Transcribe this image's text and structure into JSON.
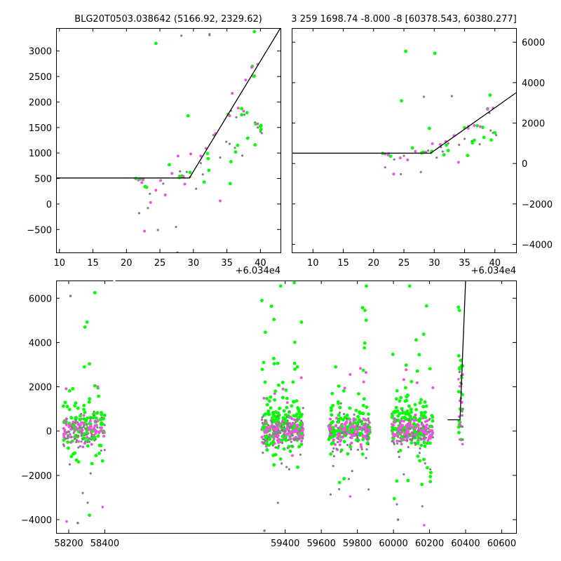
{
  "chart_data": [
    {
      "id": "top-left",
      "type": "scatter",
      "title": "BLG20T0503.038642 (5166.92, 2329.62)",
      "x_offset_label": "+6.034e4",
      "xlim": [
        9.5,
        43.0
      ],
      "ylim": [
        -950,
        3450
      ],
      "xticks": [
        10,
        15,
        20,
        25,
        30,
        35,
        40
      ],
      "yticks": [
        -500,
        0,
        500,
        1000,
        1500,
        2000,
        2500,
        3000
      ],
      "y_axis_side": "left",
      "series": [
        {
          "color": "#808080",
          "marker_size": 1.6,
          "points": [
            [
              21.9,
              -180
            ],
            [
              22.5,
              470
            ],
            [
              23.2,
              -80
            ],
            [
              23.5,
              200
            ],
            [
              24.7,
              -510
            ],
            [
              25.5,
              400
            ],
            [
              25.8,
              170
            ],
            [
              27.4,
              -450
            ],
            [
              27.6,
              -950
            ],
            [
              27.9,
              550
            ],
            [
              28.0,
              640
            ],
            [
              28.2,
              3300
            ],
            [
              28.5,
              520
            ],
            [
              29.0,
              630
            ],
            [
              29.5,
              530
            ],
            [
              30.4,
              300
            ],
            [
              31.1,
              800
            ],
            [
              31.4,
              580
            ],
            [
              32.4,
              3330
            ],
            [
              32.4,
              3310
            ],
            [
              33.0,
              1350
            ],
            [
              34.0,
              910
            ],
            [
              34.9,
              1220
            ],
            [
              35.4,
              1180
            ],
            [
              35.6,
              1830
            ],
            [
              36.2,
              1100
            ],
            [
              36.4,
              1700
            ],
            [
              37.3,
              950
            ],
            [
              37.6,
              1750
            ],
            [
              38.2,
              1300
            ],
            [
              38.9,
              2500
            ],
            [
              39.2,
              1600
            ],
            [
              39.6,
              1500
            ],
            [
              40.0,
              1420
            ],
            [
              40.2,
              1390
            ]
          ]
        },
        {
          "color": "#00ff00",
          "marker_size": 2.4,
          "points": [
            [
              21.4,
              500
            ],
            [
              22.1,
              490
            ],
            [
              22.8,
              340
            ],
            [
              22.8,
              340
            ],
            [
              23.0,
              330
            ],
            [
              24.4,
              3150
            ],
            [
              26.4,
              770
            ],
            [
              27.9,
              520
            ],
            [
              28.3,
              550
            ],
            [
              29.2,
              1730
            ],
            [
              29.5,
              620
            ],
            [
              31.6,
              430
            ],
            [
              32.1,
              990
            ],
            [
              32.2,
              890
            ],
            [
              32.3,
              660
            ],
            [
              35.2,
              1760
            ],
            [
              35.5,
              400
            ],
            [
              35.6,
              830
            ],
            [
              36.3,
              1020
            ],
            [
              36.6,
              1150
            ],
            [
              37.2,
              1870
            ],
            [
              37.2,
              1750
            ],
            [
              38.0,
              1790
            ],
            [
              38.1,
              1290
            ],
            [
              38.8,
              2700
            ],
            [
              39.1,
              3380
            ],
            [
              39.1,
              2510
            ],
            [
              39.2,
              1160
            ],
            [
              39.3,
              1570
            ],
            [
              40.0,
              1520
            ],
            [
              40.1,
              1460
            ],
            [
              40.1,
              1540
            ]
          ]
        },
        {
          "color": "#ee55dd",
          "marker_size": 2.0,
          "points": [
            [
              21.8,
              470
            ],
            [
              22.3,
              420
            ],
            [
              22.5,
              490
            ],
            [
              22.7,
              -530
            ],
            [
              23.6,
              30
            ],
            [
              24.4,
              270
            ],
            [
              25.1,
              460
            ],
            [
              25.8,
              180
            ],
            [
              26.8,
              600
            ],
            [
              27.7,
              940
            ],
            [
              28.5,
              540
            ],
            [
              28.7,
              390
            ],
            [
              29.6,
              980
            ],
            [
              31.1,
              940
            ],
            [
              31.9,
              1090
            ],
            [
              33.3,
              1380
            ],
            [
              34.0,
              60
            ],
            [
              35.4,
              1730
            ],
            [
              35.8,
              2170
            ],
            [
              36.7,
              1880
            ],
            [
              37.5,
              1820
            ],
            [
              37.8,
              2430
            ],
            [
              38.7,
              2680
            ],
            [
              39.6,
              2740
            ],
            [
              39.6,
              1570
            ]
          ]
        }
      ],
      "model_line": [
        [
          9.5,
          510
        ],
        [
          29.4,
          510
        ],
        [
          43.0,
          3450
        ]
      ]
    },
    {
      "id": "top-right",
      "type": "scatter",
      "title": "3 259 1698.74 -8.000 -8 [60378.543, 60380.277]",
      "x_offset_label": "+6.034e4",
      "xlim": [
        6.5,
        43.5
      ],
      "ylim": [
        -4400,
        6700
      ],
      "xticks": [
        10,
        15,
        20,
        25,
        30,
        35,
        40
      ],
      "yticks": [
        -4000,
        -2000,
        0,
        2000,
        4000,
        6000
      ],
      "y_axis_side": "right",
      "series": [
        {
          "color": "#808080",
          "marker_size": 1.6,
          "points": [
            [
              21.9,
              -190
            ],
            [
              22.5,
              500
            ],
            [
              23.4,
              200
            ],
            [
              24.5,
              -530
            ],
            [
              25.0,
              380
            ],
            [
              27.8,
              -420
            ],
            [
              28.3,
              3300
            ],
            [
              29.0,
              640
            ],
            [
              29.5,
              530
            ],
            [
              30.4,
              290
            ],
            [
              31.1,
              810
            ],
            [
              31.4,
              590
            ],
            [
              32.3,
              990
            ],
            [
              32.9,
              3330
            ],
            [
              33.2,
              1380
            ],
            [
              34.1,
              920
            ],
            [
              35.0,
              1220
            ],
            [
              35.6,
              1850
            ],
            [
              36.2,
              1100
            ],
            [
              37.5,
              950
            ],
            [
              38.0,
              1760
            ],
            [
              39.1,
              2500
            ],
            [
              39.3,
              1630
            ],
            [
              39.7,
              1520
            ],
            [
              40.2,
              1400
            ]
          ]
        },
        {
          "color": "#00ff00",
          "marker_size": 2.4,
          "points": [
            [
              21.5,
              500
            ],
            [
              22.8,
              360
            ],
            [
              24.6,
              3100
            ],
            [
              25.3,
              5550
            ],
            [
              26.4,
              770
            ],
            [
              27.9,
              520
            ],
            [
              28.2,
              560
            ],
            [
              29.2,
              1740
            ],
            [
              29.6,
              600
            ],
            [
              30.1,
              5450
            ],
            [
              31.6,
              430
            ],
            [
              32.0,
              910
            ],
            [
              32.3,
              640
            ],
            [
              35.0,
              1770
            ],
            [
              35.5,
              400
            ],
            [
              36.3,
              1020
            ],
            [
              36.6,
              1150
            ],
            [
              37.1,
              1870
            ],
            [
              38.0,
              1790
            ],
            [
              38.2,
              1290
            ],
            [
              38.8,
              2700
            ],
            [
              39.2,
              3380
            ],
            [
              39.4,
              1160
            ],
            [
              40.0,
              1520
            ]
          ]
        },
        {
          "color": "#ee55dd",
          "marker_size": 2.0,
          "points": [
            [
              21.9,
              470
            ],
            [
              22.4,
              420
            ],
            [
              23.3,
              -520
            ],
            [
              24.4,
              280
            ],
            [
              25.6,
              180
            ],
            [
              26.9,
              600
            ],
            [
              28.6,
              560
            ],
            [
              29.7,
              980
            ],
            [
              31.0,
              940
            ],
            [
              31.9,
              1090
            ],
            [
              33.3,
              1380
            ],
            [
              34.0,
              60
            ],
            [
              35.6,
              1740
            ],
            [
              36.6,
              1880
            ],
            [
              37.6,
              1820
            ],
            [
              38.8,
              2680
            ],
            [
              39.7,
              2740
            ]
          ]
        }
      ],
      "model_line": [
        [
          6.5,
          510
        ],
        [
          29.4,
          510
        ],
        [
          43.5,
          3500
        ]
      ]
    },
    {
      "id": "bottom",
      "type": "scatter",
      "x_offset_label": "",
      "xlim": [
        58130,
        60680
      ],
      "ylim": [
        -4600,
        6800
      ],
      "xticks": [
        58200,
        58400,
        59400,
        59600,
        59800,
        60000,
        60200,
        60400,
        60600
      ],
      "yticks": [
        -4000,
        -2000,
        0,
        2000,
        4000,
        6000
      ],
      "y_axis_side": "left",
      "axis_break_between": [
        58400,
        59400
      ],
      "seasons": [
        {
          "x_range": [
            58170,
            58400
          ],
          "count": 260
        },
        {
          "x_range": [
            59270,
            59500
          ],
          "count": 420
        },
        {
          "x_range": [
            59640,
            59870
          ],
          "count": 340
        },
        {
          "x_range": [
            59990,
            60220
          ],
          "count": 380
        }
      ],
      "event": {
        "x_range": [
          60360,
          60385
        ],
        "count": 40
      },
      "extra_points": [
        {
          "color": "#808080",
          "x": 58210,
          "y": 6100
        },
        {
          "color": "#00ff00",
          "x": 58345,
          "y": 6250
        },
        {
          "color": "#808080",
          "x": 58250,
          "y": -4150
        },
        {
          "color": "#ee55dd",
          "x": 58188,
          "y": -4080
        },
        {
          "color": "#00ff00",
          "x": 58315,
          "y": -3800
        },
        {
          "color": "#ee55dd",
          "x": 58388,
          "y": -3430
        },
        {
          "color": "#808080",
          "x": 59285,
          "y": -4500
        },
        {
          "color": "#00ff00",
          "x": 59375,
          "y": 6550
        },
        {
          "color": "#00ff00",
          "x": 59450,
          "y": 6700
        },
        {
          "color": "#ee55dd",
          "x": 59760,
          "y": -2950
        },
        {
          "color": "#00ff00",
          "x": 59850,
          "y": 6550
        },
        {
          "color": "#00ff00",
          "x": 60005,
          "y": -3050
        },
        {
          "color": "#808080",
          "x": 60025,
          "y": -4000
        },
        {
          "color": "#00ff00",
          "x": 60090,
          "y": 6550
        },
        {
          "color": "#ee55dd",
          "x": 60170,
          "y": -4250
        },
        {
          "color": "#00ff00",
          "x": 60360,
          "y": 5600
        },
        {
          "color": "#00ff00",
          "x": 60366,
          "y": 5450
        }
      ],
      "model_line": [
        [
          60300,
          510
        ],
        [
          60369,
          510
        ],
        [
          60400,
          6800
        ]
      ],
      "colors": {
        "grey": "#808080",
        "green": "#00ff00",
        "magenta": "#ee55dd"
      }
    }
  ]
}
